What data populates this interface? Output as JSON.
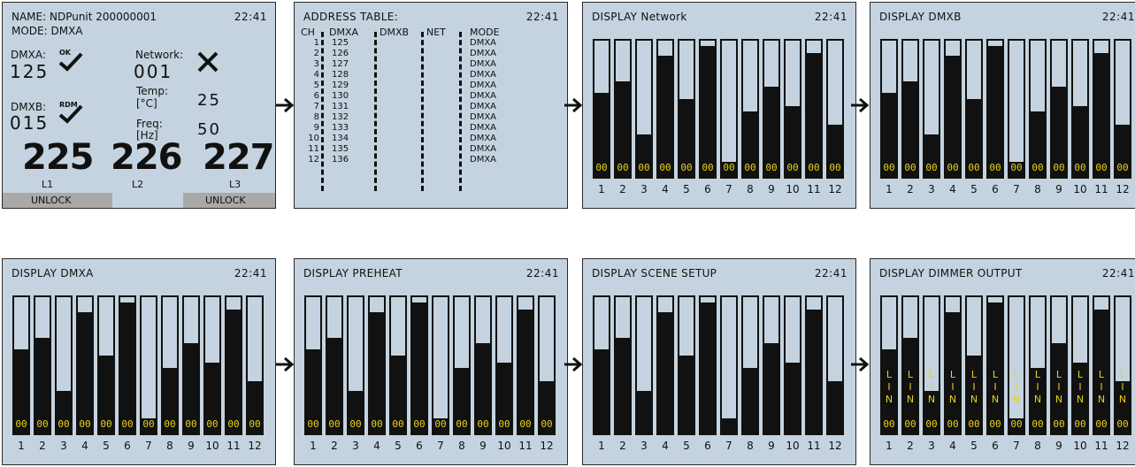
{
  "time": "22:41",
  "main_screen": {
    "name": "NAME: NDPunit 200000001",
    "mode": "MODE: DMXA",
    "dmxa_label": "DMXA:",
    "dmxa_value": "125",
    "dmxa_status": "OK",
    "network_label": "Network:",
    "network_value": "001",
    "dmxb_label": "DMXB:",
    "dmxb_value": "015",
    "dmxb_status": "RDM",
    "temp_label": "Temp:",
    "temp_unit": "[°C]",
    "temp_value": "25",
    "freq_label": "Freq:",
    "freq_unit": "[Hz]",
    "freq_value": "50",
    "phase_values": [
      "225",
      "226",
      "227"
    ],
    "phase_labels": [
      "L1",
      "L2",
      "L3"
    ],
    "softkeys": [
      "UNLOCK",
      "UNLOCK"
    ]
  },
  "address_table": {
    "title": "ADDRESS TABLE:",
    "headers": [
      "CH",
      "DMXA",
      "DMXB",
      "NET",
      "MODE"
    ],
    "channels": [
      "1",
      "2",
      "3",
      "4",
      "5",
      "6",
      "7",
      "8",
      "9",
      "10",
      "11",
      "12"
    ],
    "dmxa": [
      "125",
      "126",
      "127",
      "128",
      "129",
      "130",
      "131",
      "132",
      "133",
      "134",
      "135",
      "136"
    ],
    "mode": [
      "DMXA",
      "DMXA",
      "DMXA",
      "DMXA",
      "DMXA",
      "DMXA",
      "DMXA",
      "DMXA",
      "DMXA",
      "DMXA",
      "DMXA",
      "DMXA"
    ]
  },
  "bar_screens": [
    {
      "title": "DISPLAY Network"
    },
    {
      "title": "DISPLAY DMXB"
    },
    {
      "title": "DISPLAY DMXA"
    },
    {
      "title": "DISPLAY PREHEAT"
    },
    {
      "title": "DISPLAY SCENE SETUP"
    },
    {
      "title": "DISPLAY DIMMER OUTPUT"
    }
  ],
  "bar_channels": [
    "1",
    "2",
    "3",
    "4",
    "5",
    "6",
    "7",
    "8",
    "9",
    "10",
    "11",
    "12"
  ],
  "bar_levels": [
    0.62,
    0.7,
    0.31,
    0.89,
    0.57,
    0.96,
    0.11,
    0.48,
    0.66,
    0.52,
    0.91,
    0.38
  ],
  "bar_value_label": "00",
  "dimmer_output_label": [
    "L",
    "I",
    "N"
  ],
  "colors": {
    "screen": "#c4d3df",
    "bar": "#111111",
    "value": "#e8d21c"
  }
}
